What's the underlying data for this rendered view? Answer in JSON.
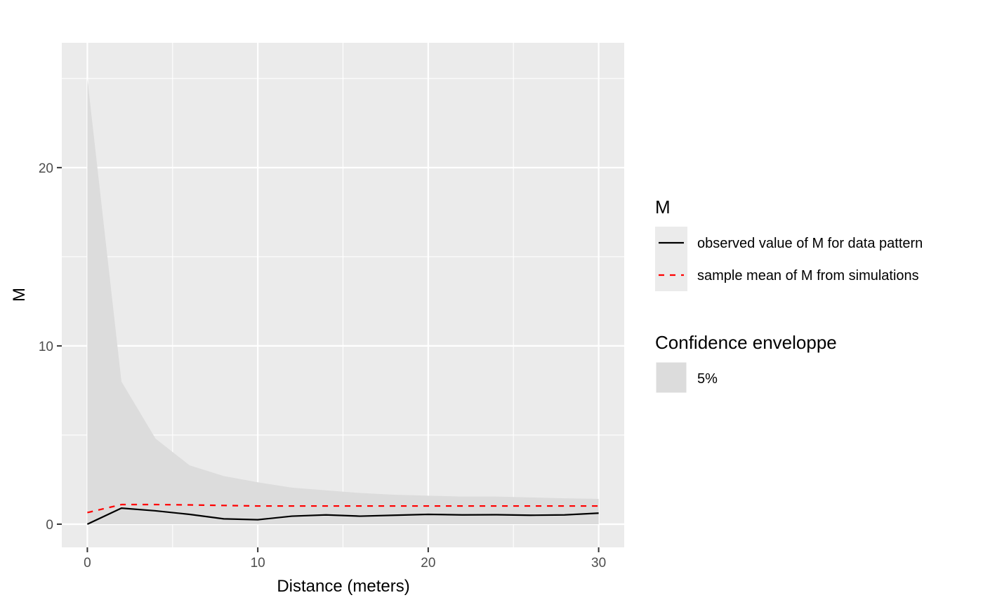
{
  "chart_data": {
    "type": "line",
    "xlabel": "Distance (meters)",
    "ylabel": "M",
    "xlim": [
      -1.5,
      31.5
    ],
    "ylim": [
      -1.3,
      27
    ],
    "x_ticks": [
      0,
      10,
      20,
      30
    ],
    "y_ticks": [
      0,
      10,
      20
    ],
    "grid": true,
    "legend_position": "right",
    "x": [
      0,
      2,
      4,
      6,
      8,
      10,
      12,
      14,
      16,
      18,
      20,
      22,
      24,
      26,
      28,
      30
    ],
    "series": [
      {
        "name": "observed value of M for data pattern",
        "color": "#000000",
        "linestyle": "solid",
        "values": [
          0.0,
          0.9,
          0.75,
          0.55,
          0.3,
          0.25,
          0.45,
          0.52,
          0.45,
          0.5,
          0.55,
          0.52,
          0.53,
          0.5,
          0.52,
          0.62
        ]
      },
      {
        "name": "sample mean of M from simulations",
        "color": "#ff0000",
        "linestyle": "dashed",
        "values": [
          0.65,
          1.1,
          1.1,
          1.08,
          1.05,
          1.02,
          1.02,
          1.02,
          1.02,
          1.02,
          1.02,
          1.02,
          1.02,
          1.02,
          1.02,
          1.02
        ]
      }
    ],
    "envelope": {
      "name": "5%",
      "color": "#dcdcdc",
      "lower": [
        0,
        0,
        0,
        0,
        0,
        0,
        0,
        0,
        0,
        0,
        0,
        0,
        0,
        0,
        0,
        0
      ],
      "upper": [
        25,
        8,
        4.8,
        3.3,
        2.7,
        2.35,
        2.05,
        1.9,
        1.75,
        1.65,
        1.6,
        1.55,
        1.55,
        1.5,
        1.45,
        1.42
      ]
    },
    "legends": [
      {
        "title": "M",
        "entries": [
          "observed value of M for data pattern",
          "sample mean of M from simulations"
        ]
      },
      {
        "title": "Confidence enveloppe",
        "entries": [
          "5%"
        ]
      }
    ]
  }
}
